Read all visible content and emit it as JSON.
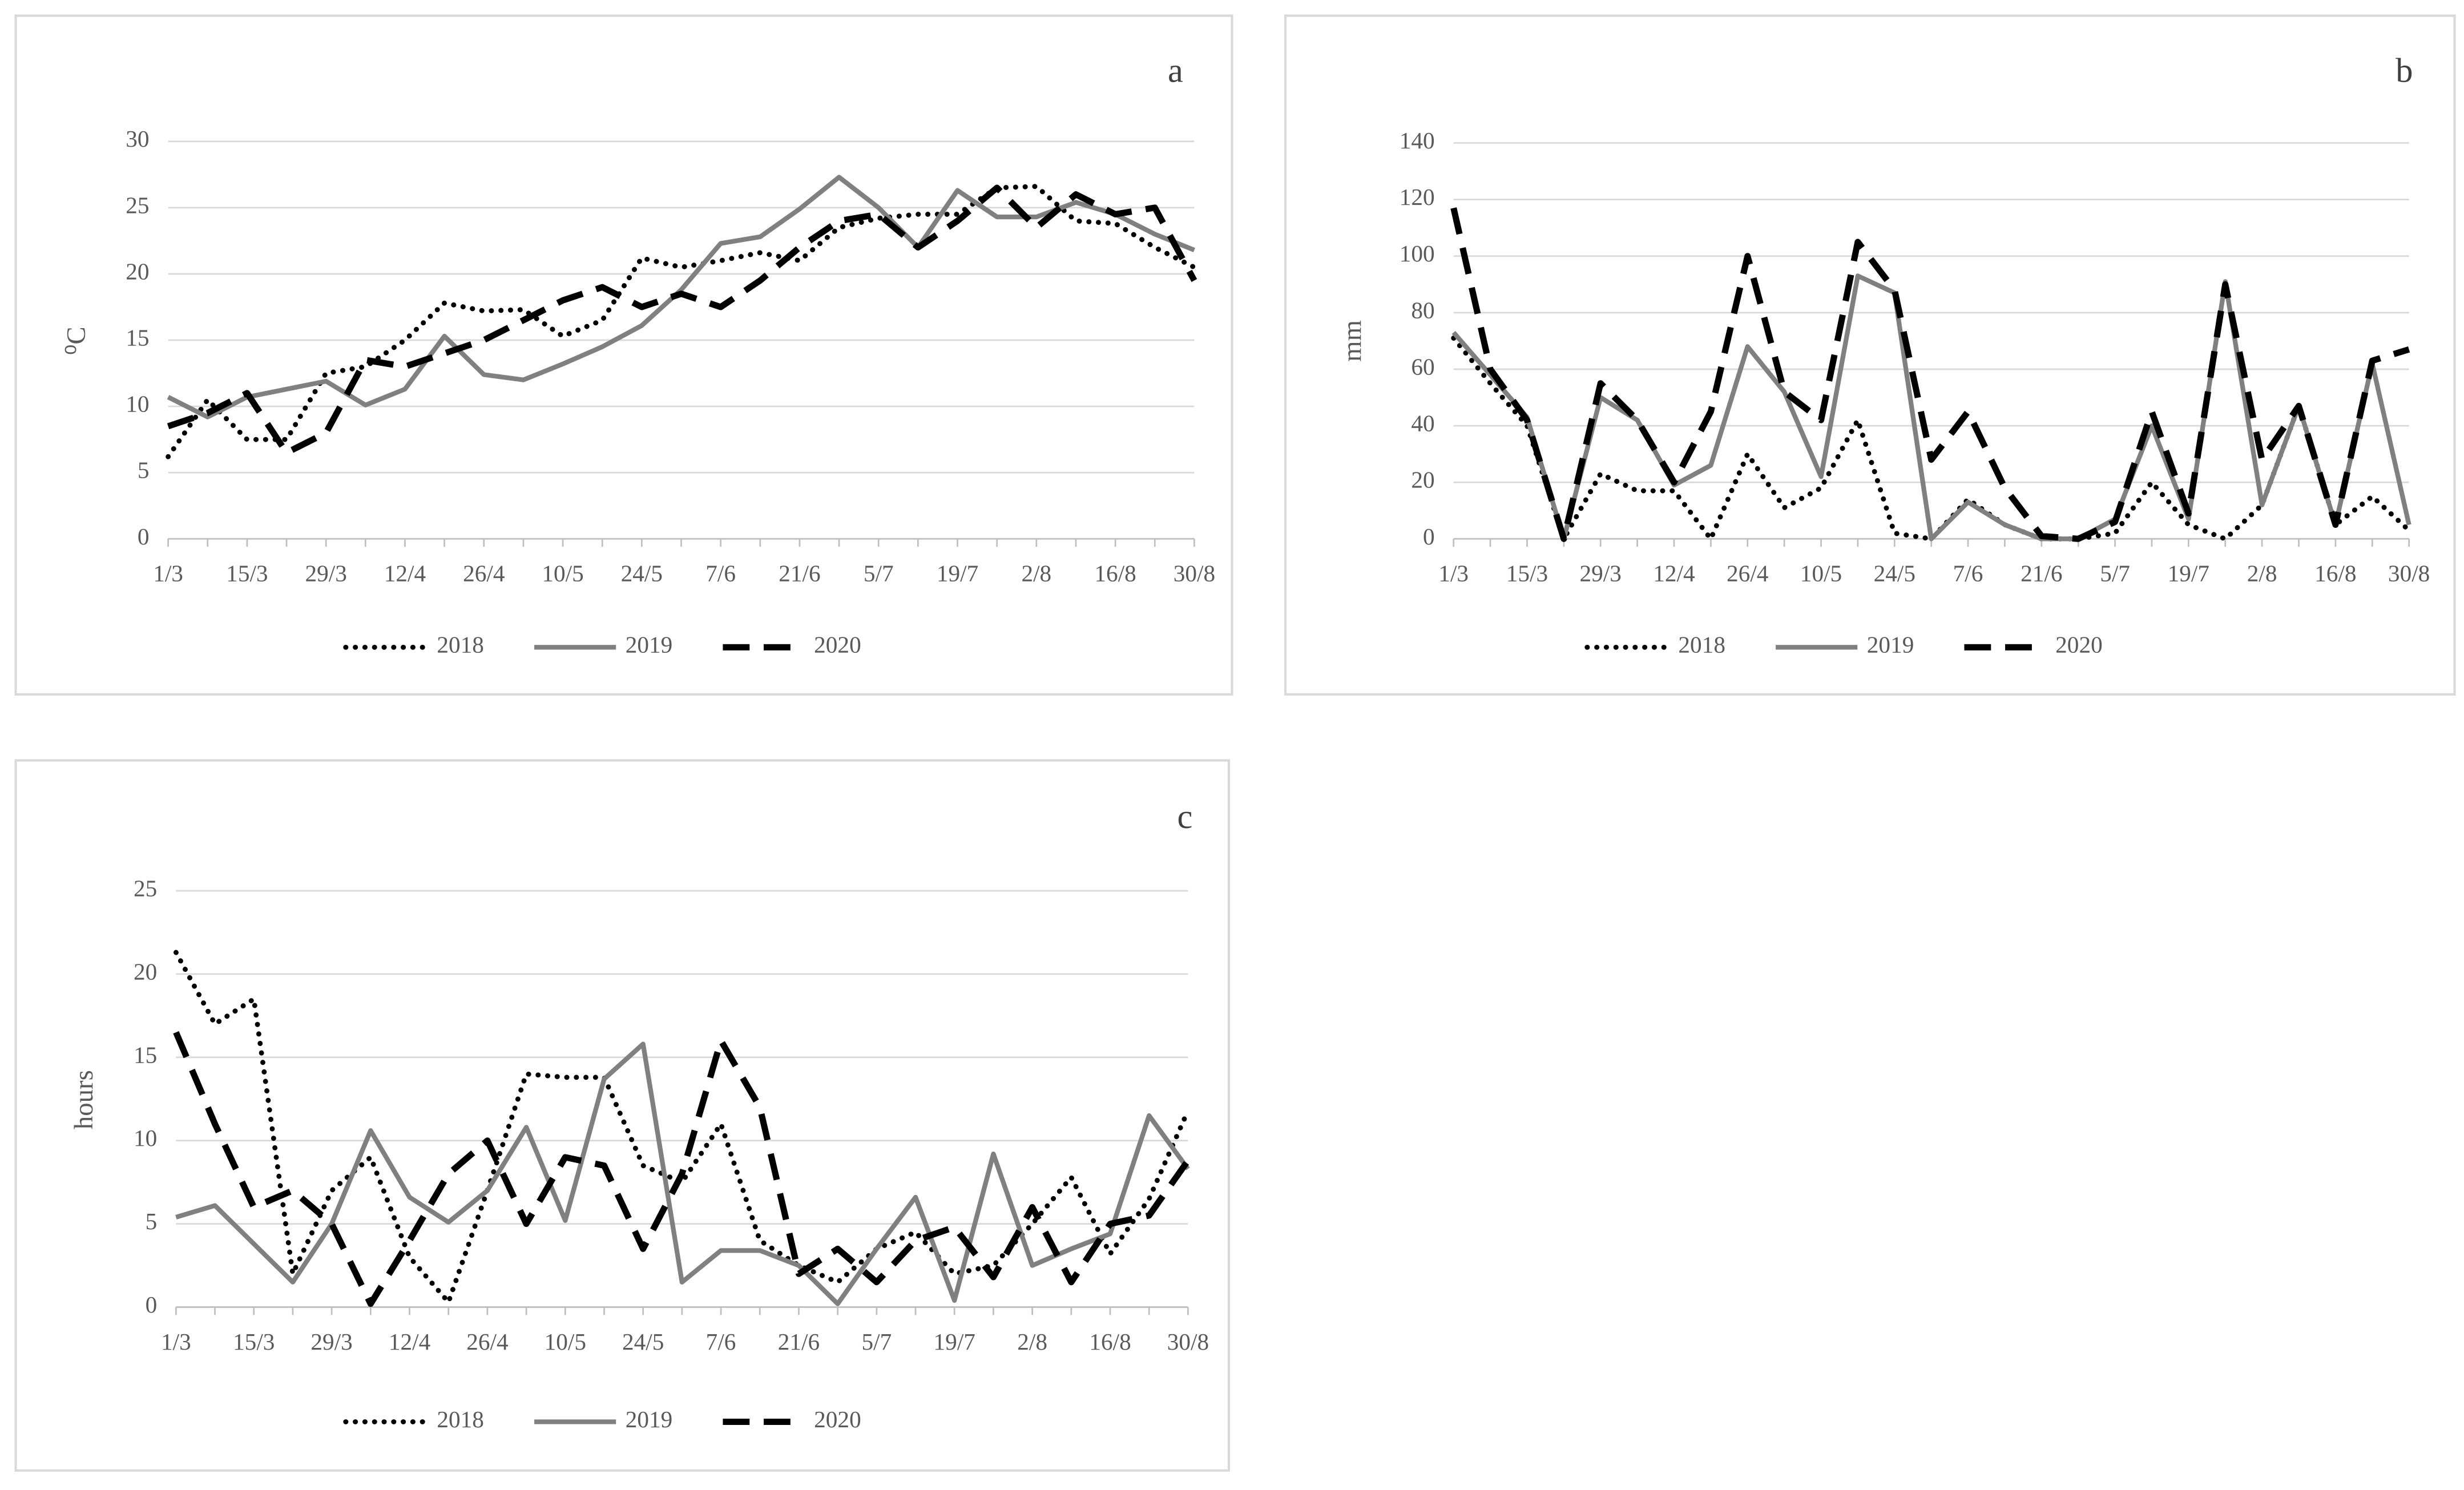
{
  "chart_data": [
    {
      "type": "line",
      "panel_label": "a",
      "y_label": "⁰C",
      "categories": [
        "1/3",
        null,
        "15/3",
        null,
        "29/3",
        null,
        "12/4",
        null,
        "26/4",
        null,
        "10/5",
        null,
        "24/5",
        null,
        "7/6",
        null,
        "21/6",
        null,
        "5/7",
        null,
        "19/7",
        null,
        "2/8",
        null,
        "16/8",
        null,
        "30/8"
      ],
      "series": [
        {
          "name": "2018",
          "color": "#000000",
          "dash": "dotted",
          "values": [
            6.2,
            10.5,
            7.5,
            7.5,
            12.5,
            13,
            15,
            17.8,
            17.2,
            17.3,
            15.3,
            16.5,
            21.2,
            20.5,
            21,
            21.6,
            21,
            23.5,
            24.2,
            24.5,
            24.5,
            26.5,
            26.6,
            24,
            23.8,
            22,
            20.5
          ]
        },
        {
          "name": "2019",
          "color": "#808080",
          "dash": "solid",
          "values": [
            10.7,
            9.2,
            10.7,
            11.3,
            11.9,
            10.1,
            11.3,
            15.3,
            12.4,
            12,
            13.2,
            14.5,
            16.1,
            18.8,
            22.3,
            22.8,
            24.9,
            27.3,
            25,
            22,
            26.3,
            24.3,
            24.3,
            25.4,
            24.5,
            23,
            21.8
          ]
        },
        {
          "name": "2020",
          "color": "#000000",
          "dash": "dashed",
          "values": [
            8.5,
            9.5,
            11,
            6.5,
            8,
            13.5,
            13,
            14,
            15,
            16.5,
            18,
            19,
            17.5,
            18.5,
            17.5,
            19.5,
            22,
            24,
            24.5,
            22,
            24,
            26.5,
            23.5,
            26,
            24.5,
            25,
            19.5
          ]
        }
      ],
      "ylim": [
        0,
        30
      ],
      "yticks": [
        0,
        5,
        10,
        15,
        20,
        25,
        30
      ],
      "grid": true,
      "legend": "bottom"
    },
    {
      "type": "line",
      "panel_label": "b",
      "y_label": "mm",
      "categories": [
        "1/3",
        null,
        "15/3",
        null,
        "29/3",
        null,
        "12/4",
        null,
        "26/4",
        null,
        "10/5",
        null,
        "24/5",
        null,
        "7/6",
        null,
        "21/6",
        null,
        "5/7",
        null,
        "19/7",
        null,
        "2/8",
        null,
        "16/8",
        null,
        "30/8"
      ],
      "series": [
        {
          "name": "2018",
          "color": "#000000",
          "dash": "dotted",
          "values": [
            71,
            55,
            40,
            0,
            23,
            17,
            17,
            0,
            30,
            11,
            18,
            42,
            2,
            0,
            14,
            5,
            0,
            0,
            2,
            20,
            5,
            0,
            12,
            47,
            5,
            15,
            3
          ]
        },
        {
          "name": "2019",
          "color": "#808080",
          "dash": "solid",
          "values": [
            73,
            58,
            43,
            0,
            50,
            42,
            19,
            26,
            68,
            52,
            22,
            93,
            87,
            0,
            13,
            5,
            0,
            0,
            7,
            40,
            7,
            91,
            12,
            47,
            5,
            62,
            5
          ]
        },
        {
          "name": "2020",
          "color": "#000000",
          "dash": "dashed",
          "values": [
            117,
            60,
            42,
            0,
            55,
            42,
            20,
            45,
            100,
            52,
            42,
            105,
            88,
            28,
            45,
            18,
            1,
            0,
            6,
            45,
            9,
            90,
            28,
            47,
            5,
            63,
            67
          ]
        }
      ],
      "ylim": [
        0,
        140
      ],
      "yticks": [
        0,
        20,
        40,
        60,
        80,
        100,
        120,
        140
      ],
      "grid": true,
      "legend": "bottom"
    },
    {
      "type": "line",
      "panel_label": "c",
      "y_label": "hours",
      "categories": [
        "1/3",
        null,
        "15/3",
        null,
        "29/3",
        null,
        "12/4",
        null,
        "26/4",
        null,
        "10/5",
        null,
        "24/5",
        null,
        "7/6",
        null,
        "21/6",
        null,
        "5/7",
        null,
        "19/7",
        null,
        "2/8",
        null,
        "16/8",
        null,
        "30/8"
      ],
      "series": [
        {
          "name": "2018",
          "color": "#000000",
          "dash": "dotted",
          "values": [
            21.3,
            17,
            18.5,
            2,
            7,
            9,
            3,
            0.3,
            7,
            14,
            13.8,
            13.8,
            8.5,
            7.5,
            11,
            4,
            2.5,
            1.5,
            3.5,
            4.5,
            2,
            2.5,
            5,
            7.8,
            3.2,
            6.5,
            11.8
          ]
        },
        {
          "name": "2019",
          "color": "#808080",
          "dash": "solid",
          "values": [
            5.4,
            6.1,
            3.8,
            1.5,
            5,
            10.6,
            6.6,
            5.1,
            7,
            10.8,
            5.2,
            13.7,
            15.8,
            1.5,
            3.4,
            3.4,
            2.5,
            0.2,
            3.5,
            6.6,
            0.4,
            9.2,
            2.5,
            3.5,
            4.4,
            11.5,
            8.3
          ]
        },
        {
          "name": "2020",
          "color": "#000000",
          "dash": "dashed",
          "values": [
            16.5,
            11,
            6,
            7,
            5,
            0.2,
            4,
            8,
            10,
            5,
            9,
            8.5,
            3.5,
            8,
            16,
            12,
            2,
            3.5,
            1.5,
            4,
            4.8,
            1.8,
            6,
            1.5,
            5,
            5.5,
            8.8
          ]
        }
      ],
      "ylim": [
        0,
        25
      ],
      "yticks": [
        0,
        5,
        10,
        15,
        20,
        25
      ],
      "grid": true,
      "legend": "bottom"
    }
  ]
}
